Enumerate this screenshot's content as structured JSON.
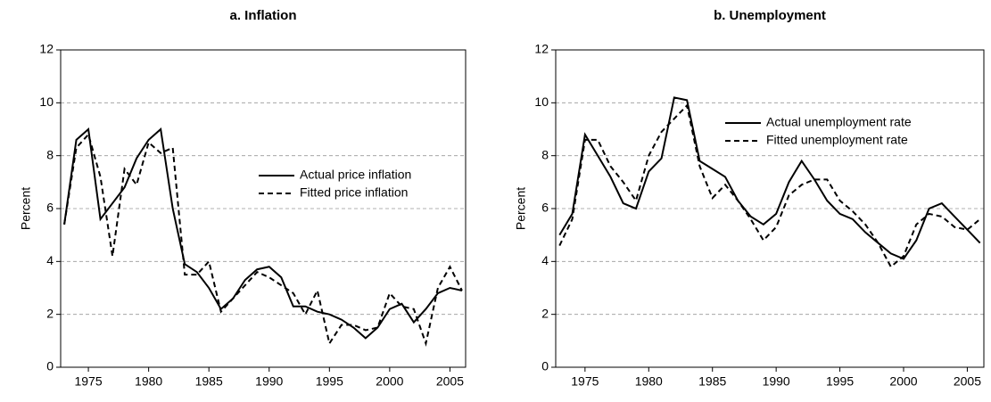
{
  "chart_data": [
    {
      "type": "line",
      "title": "a. Inflation",
      "y_label": "Percent",
      "x": [
        1973,
        1974,
        1975,
        1976,
        1977,
        1978,
        1979,
        1980,
        1981,
        1982,
        1983,
        1984,
        1985,
        1986,
        1987,
        1988,
        1989,
        1990,
        1991,
        1992,
        1993,
        1994,
        1995,
        1996,
        1997,
        1998,
        1999,
        2000,
        2001,
        2002,
        2003,
        2004,
        2005,
        2006
      ],
      "series": [
        {
          "name": "Actual price inflation",
          "color": "#000000",
          "dash": "solid",
          "values": [
            5.4,
            8.6,
            9.0,
            5.6,
            6.2,
            6.8,
            7.9,
            8.6,
            9.0,
            6.0,
            3.9,
            3.6,
            3.0,
            2.2,
            2.6,
            3.3,
            3.7,
            3.8,
            3.4,
            2.3,
            2.3,
            2.1,
            2.0,
            1.8,
            1.5,
            1.1,
            1.5,
            2.2,
            2.4,
            1.7,
            2.2,
            2.8,
            3.0,
            2.9
          ]
        },
        {
          "name": "Fitted price inflation",
          "color": "#000000",
          "dash": "dashed",
          "values": [
            5.4,
            8.3,
            8.8,
            7.2,
            4.2,
            7.5,
            6.9,
            8.5,
            8.1,
            8.3,
            3.5,
            3.5,
            4.0,
            2.1,
            2.6,
            3.1,
            3.6,
            3.4,
            3.1,
            2.8,
            2.0,
            2.9,
            0.9,
            1.6,
            1.6,
            1.4,
            1.5,
            2.8,
            2.3,
            2.2,
            0.9,
            3.0,
            3.8,
            2.9
          ]
        }
      ],
      "xlim": [
        1972.7,
        2006.3
      ],
      "xticks": [
        1975,
        1980,
        1985,
        1990,
        1995,
        2000,
        2005
      ],
      "ylim": [
        0,
        12
      ],
      "yticks": [
        0,
        2,
        4,
        6,
        8,
        10,
        12
      ],
      "grid": true,
      "legend": "right"
    },
    {
      "type": "line",
      "title": "b. Unemployment",
      "y_label": "Percent",
      "x": [
        1973,
        1974,
        1975,
        1976,
        1977,
        1978,
        1979,
        1980,
        1981,
        1982,
        1983,
        1984,
        1985,
        1986,
        1987,
        1988,
        1989,
        1990,
        1991,
        1992,
        1993,
        1994,
        1995,
        1996,
        1997,
        1998,
        1999,
        2000,
        2001,
        2002,
        2003,
        2004,
        2005,
        2006
      ],
      "series": [
        {
          "name": "Actual unemployment rate",
          "color": "#000000",
          "dash": "solid",
          "values": [
            5.0,
            5.8,
            8.8,
            8.0,
            7.2,
            6.2,
            6.0,
            7.4,
            7.9,
            10.2,
            10.1,
            7.8,
            7.5,
            7.2,
            6.3,
            5.7,
            5.4,
            5.8,
            7.0,
            7.8,
            7.1,
            6.3,
            5.8,
            5.6,
            5.1,
            4.7,
            4.3,
            4.1,
            4.8,
            6.0,
            6.2,
            5.7,
            5.2,
            4.7
          ]
        },
        {
          "name": "Fitted unemployment rate",
          "color": "#000000",
          "dash": "dashed",
          "values": [
            4.6,
            5.6,
            8.6,
            8.6,
            7.6,
            7.0,
            6.3,
            8.0,
            8.9,
            9.4,
            9.9,
            7.6,
            6.4,
            6.9,
            6.3,
            5.6,
            4.8,
            5.3,
            6.5,
            6.9,
            7.1,
            7.1,
            6.3,
            5.9,
            5.4,
            4.7,
            3.8,
            4.2,
            5.4,
            5.8,
            5.7,
            5.3,
            5.2,
            5.6
          ]
        }
      ],
      "xlim": [
        1972.7,
        2006.3
      ],
      "xticks": [
        1975,
        1980,
        1985,
        1990,
        1995,
        2000,
        2005
      ],
      "ylim": [
        0,
        12
      ],
      "yticks": [
        0,
        2,
        4,
        6,
        8,
        10,
        12
      ],
      "grid": true,
      "legend": "upper right"
    }
  ]
}
